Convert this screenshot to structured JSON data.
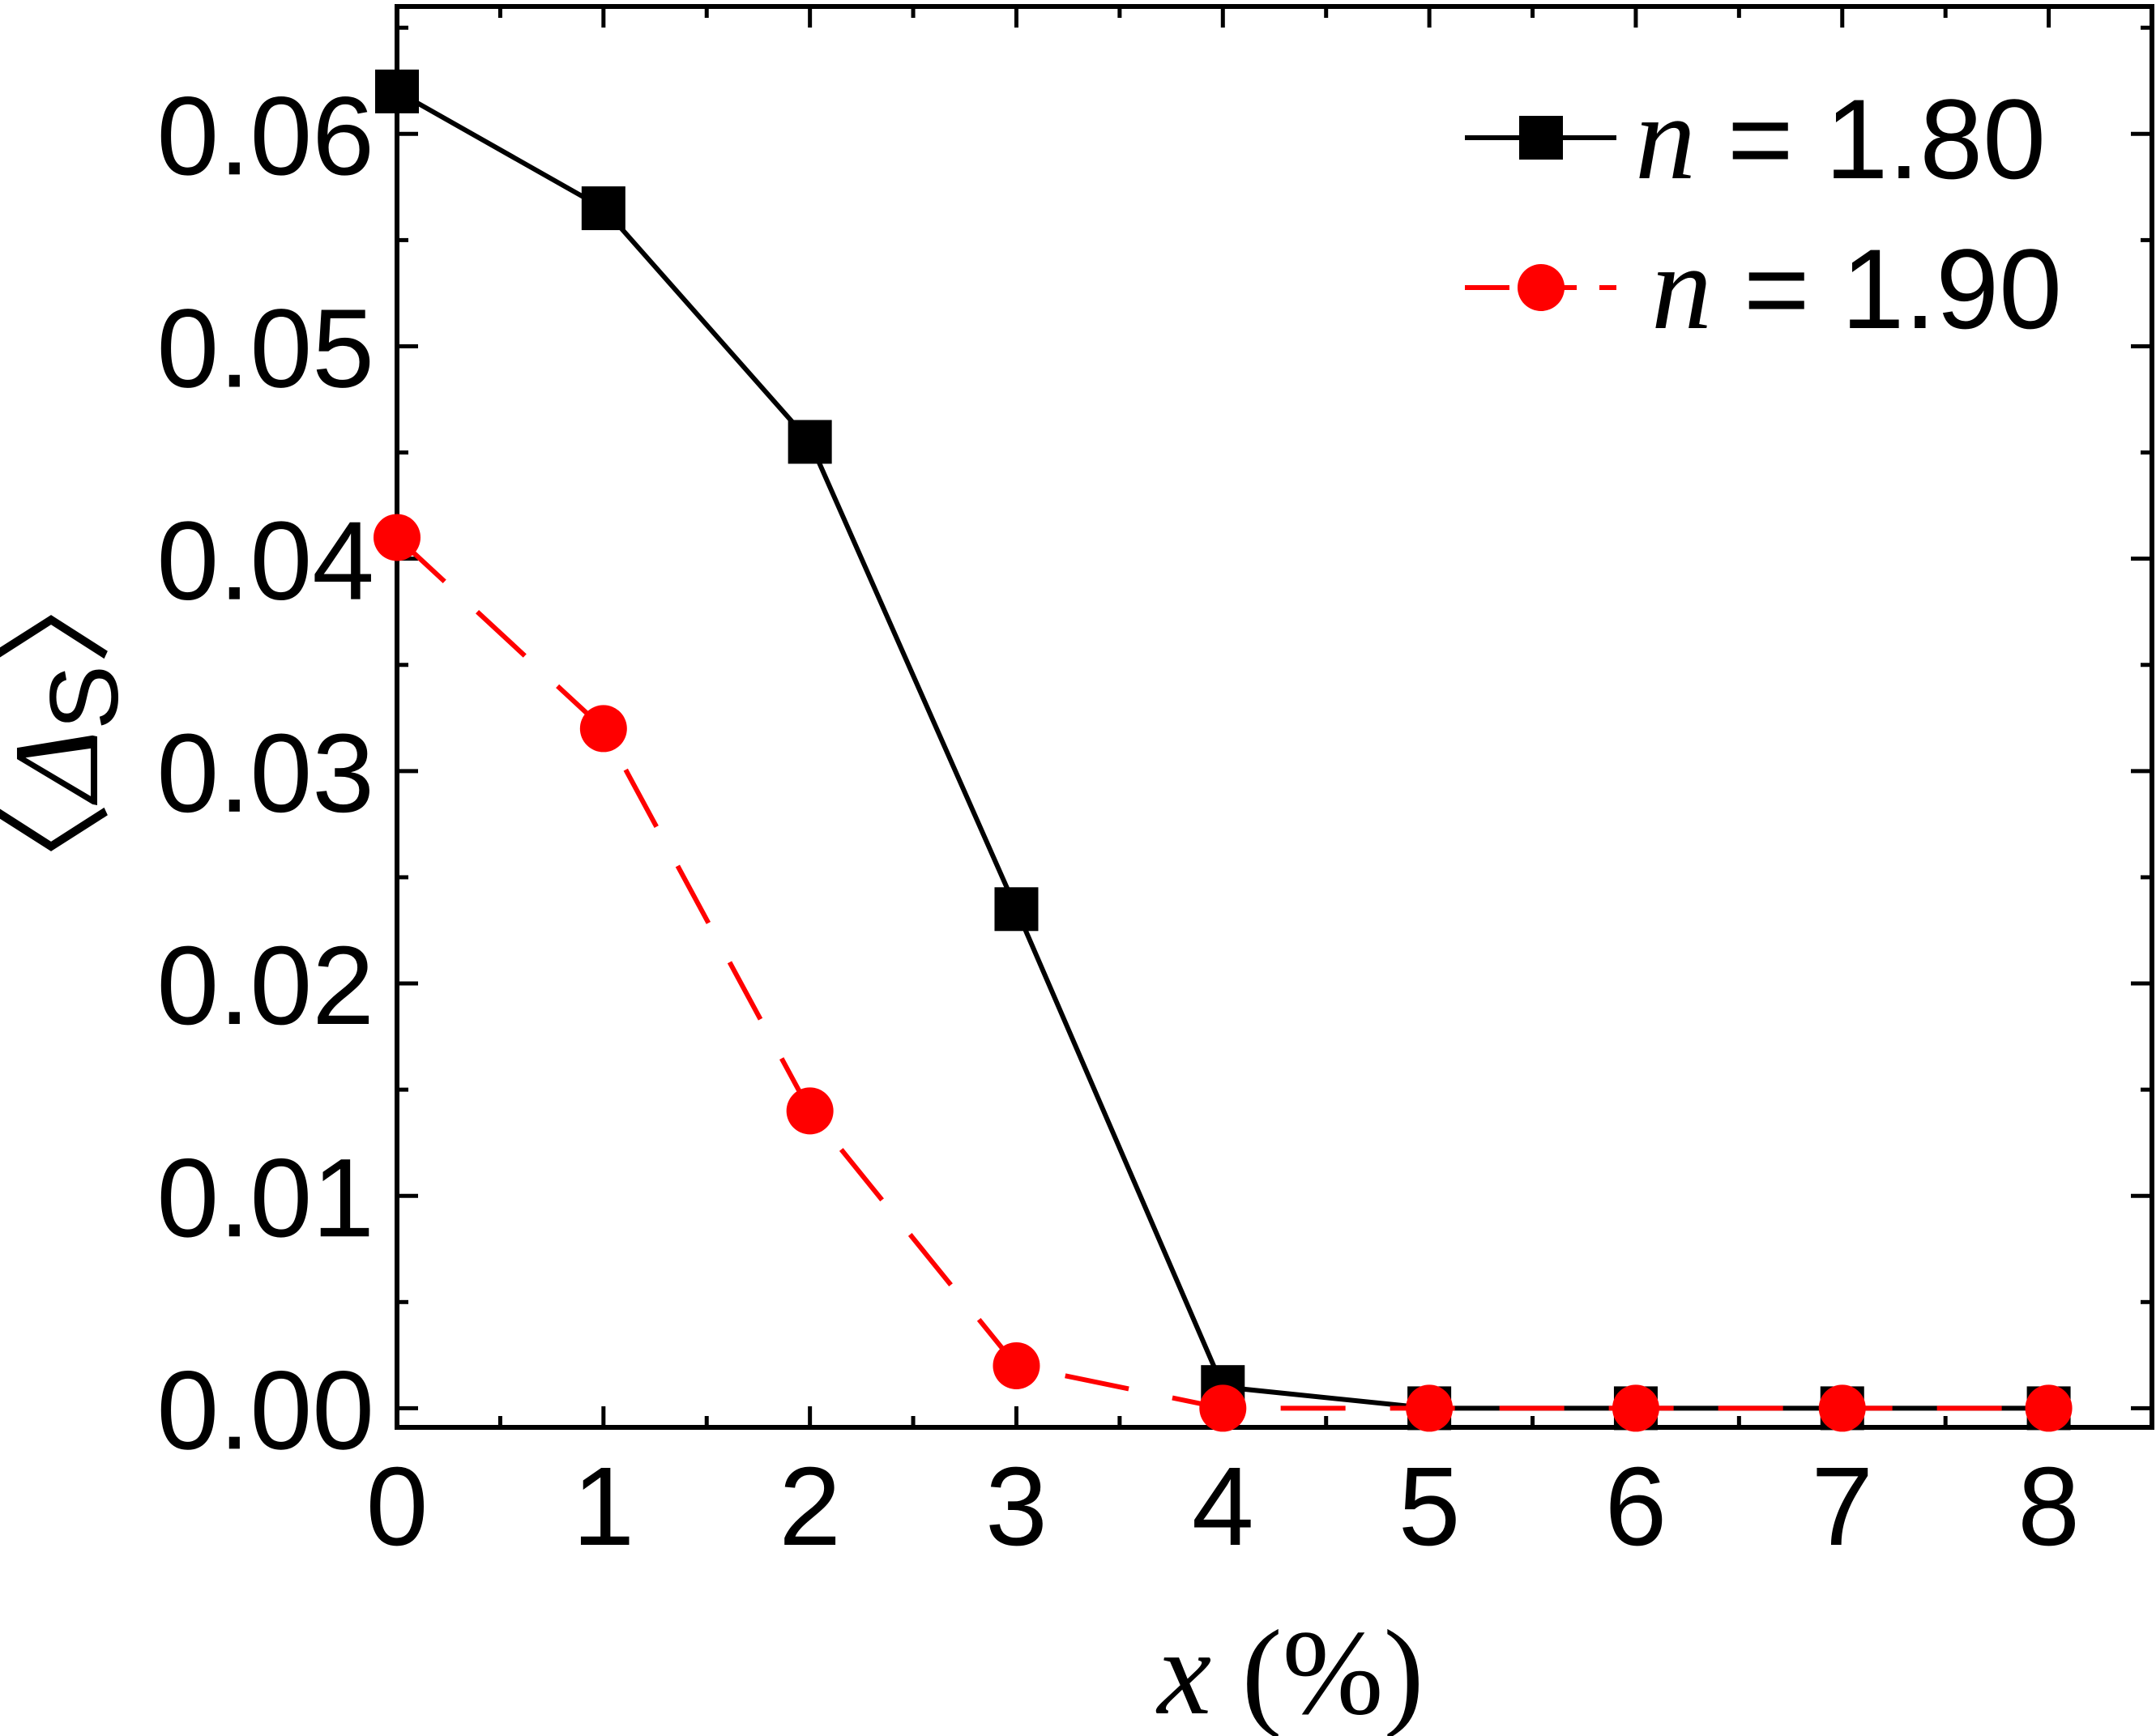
{
  "chart_data": {
    "type": "line",
    "xlabel": {
      "var": "x",
      "rest": " (%)"
    },
    "ylabel": {
      "left": "〈",
      "var": "Δ",
      "sub": "S",
      "right": "〉"
    },
    "xlim": [
      0,
      8.5
    ],
    "ylim": [
      -0.0009,
      0.066
    ],
    "x_ticks": [
      0,
      1,
      2,
      3,
      4,
      5,
      6,
      7,
      8
    ],
    "x_tick_labels": [
      "0",
      "1",
      "2",
      "3",
      "4",
      "5",
      "6",
      "7",
      "8"
    ],
    "y_ticks": [
      0.0,
      0.01,
      0.02,
      0.03,
      0.04,
      0.05,
      0.06
    ],
    "y_tick_labels": [
      "0.00",
      "0.01",
      "0.02",
      "0.03",
      "0.04",
      "0.05",
      "0.06"
    ],
    "grid": false,
    "legend_position": "top-right",
    "series": [
      {
        "name": "n = 1.80",
        "name_var": "n",
        "name_rest": " = 1.80",
        "color": "#000000",
        "marker": "square",
        "dash": "solid",
        "x": [
          0,
          1,
          2,
          3,
          4,
          5,
          6,
          7,
          8
        ],
        "y": [
          0.062,
          0.0565,
          0.0455,
          0.0235,
          0.001,
          0.0,
          0.0,
          0.0,
          0.0
        ]
      },
      {
        "name": "n = 1.90",
        "name_var": "n",
        "name_rest": " = 1.90",
        "color": "#ff0000",
        "marker": "circle",
        "dash": "dashed",
        "x": [
          0,
          1,
          2,
          3,
          4,
          5,
          6,
          7,
          8
        ],
        "y": [
          0.041,
          0.032,
          0.014,
          0.002,
          0.0,
          0.0,
          0.0,
          0.0,
          0.0
        ]
      }
    ]
  }
}
